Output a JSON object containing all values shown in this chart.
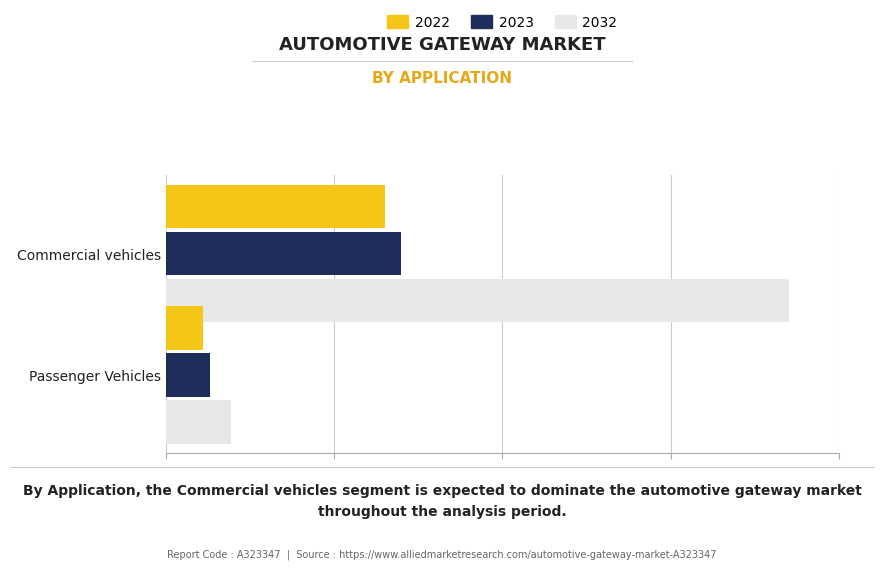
{
  "title": "AUTOMOTIVE GATEWAY MARKET",
  "subtitle": "BY APPLICATION",
  "categories": [
    "Commercial vehicles",
    "Passenger Vehicles"
  ],
  "years": [
    "2022",
    "2023",
    "2032"
  ],
  "values": {
    "Commercial vehicles": [
      5.2,
      5.6,
      14.8
    ],
    "Passenger Vehicles": [
      0.9,
      1.05,
      1.55
    ]
  },
  "colors": {
    "2022": "#F5C518",
    "2023": "#1E2D5A",
    "2032": "#E8E8E8"
  },
  "xlim": [
    0,
    16
  ],
  "bar_height": 0.25,
  "bar_spacing": 0.27,
  "group_centers": [
    0.7,
    0.0
  ],
  "ylim": [
    -0.45,
    1.15
  ],
  "footnote_line1": "By Application, the Commercial vehicles segment is expected to dominate the automotive gateway market",
  "footnote_line2": "throughout the analysis period.",
  "report_code": "Report Code : A323347  |  Source : https://www.alliedmarketresearch.com/automotive-gateway-market-A323347",
  "title_color": "#222222",
  "subtitle_color": "#E6A817",
  "footnote_color": "#222222",
  "grid_color": "#cccccc",
  "background_color": "#ffffff"
}
